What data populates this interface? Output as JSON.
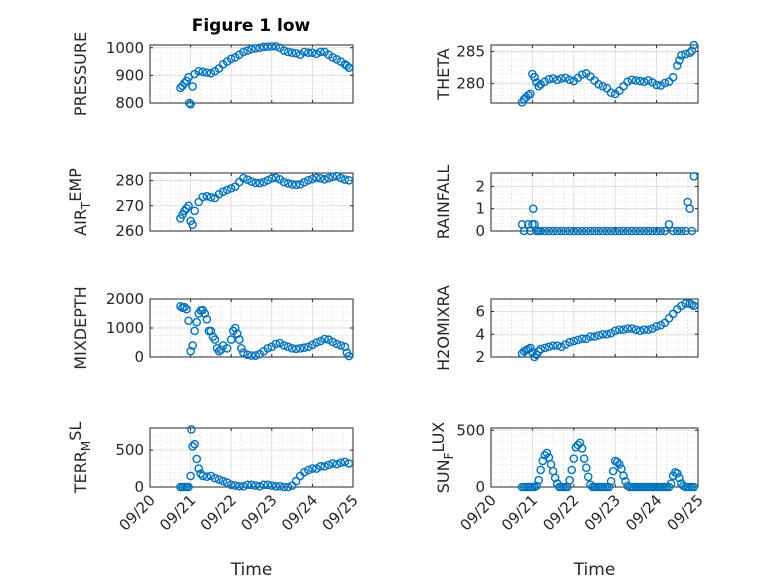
{
  "figure_title": "Figure 1 low",
  "colors": {
    "series": "#0072BD",
    "axes": "#262626",
    "grid": "#d9d9d9"
  },
  "chart_data": [
    {
      "type": "scatter",
      "ylabel_main": "PRESSURE",
      "ylabel_sub": "",
      "ylim": [
        800,
        1010
      ],
      "yticks": [
        800,
        900,
        1000
      ],
      "xlim": [
        "09/20",
        "09/25"
      ],
      "xticks": [],
      "xlabel": "",
      "grid": true,
      "x": [
        20.75,
        20.8,
        20.85,
        20.9,
        20.95,
        20.97,
        21.0,
        21.05,
        21.1,
        21.2,
        21.3,
        21.4,
        21.5,
        21.6,
        21.7,
        21.8,
        21.9,
        22.0,
        22.1,
        22.2,
        22.3,
        22.4,
        22.5,
        22.6,
        22.7,
        22.8,
        22.9,
        23.0,
        23.1,
        23.2,
        23.3,
        23.4,
        23.5,
        23.6,
        23.7,
        23.8,
        23.9,
        24.0,
        24.1,
        24.2,
        24.3,
        24.4,
        24.5,
        24.6,
        24.7,
        24.8,
        24.85,
        24.9
      ],
      "y": [
        855,
        862,
        872,
        880,
        893,
        800,
        795,
        860,
        905,
        915,
        913,
        910,
        908,
        915,
        925,
        940,
        950,
        960,
        965,
        975,
        985,
        990,
        995,
        998,
        1000,
        1003,
        1004,
        1005,
        1005,
        1000,
        990,
        985,
        982,
        980,
        975,
        985,
        982,
        982,
        978,
        985,
        985,
        975,
        965,
        958,
        950,
        940,
        935,
        928
      ]
    },
    {
      "type": "scatter",
      "ylabel_main": "THETA",
      "ylabel_sub": "",
      "ylim": [
        277,
        286
      ],
      "yticks": [
        280,
        285
      ],
      "xlim": [
        "09/20",
        "09/25"
      ],
      "xticks": [],
      "xlabel": "",
      "grid": true,
      "x": [
        20.75,
        20.8,
        20.85,
        20.9,
        20.95,
        21.0,
        21.05,
        21.1,
        21.15,
        21.2,
        21.3,
        21.4,
        21.5,
        21.6,
        21.7,
        21.8,
        21.9,
        22.0,
        22.1,
        22.2,
        22.3,
        22.4,
        22.5,
        22.6,
        22.7,
        22.8,
        22.9,
        23.0,
        23.1,
        23.2,
        23.3,
        23.4,
        23.5,
        23.6,
        23.7,
        23.8,
        23.9,
        24.0,
        24.1,
        24.2,
        24.3,
        24.4,
        24.5,
        24.55,
        24.6,
        24.7,
        24.8,
        24.85,
        24.9
      ],
      "y": [
        277.1,
        277.6,
        277.9,
        278.2,
        278.4,
        281.5,
        281.0,
        280.2,
        279.6,
        279.9,
        280.3,
        280.7,
        280.8,
        280.6,
        280.8,
        280.9,
        280.6,
        280.4,
        280.9,
        281.4,
        281.6,
        281.1,
        280.5,
        279.9,
        279.6,
        279.3,
        278.6,
        278.4,
        278.9,
        279.6,
        280.3,
        280.6,
        280.5,
        280.4,
        280.3,
        280.5,
        280.2,
        279.8,
        279.7,
        280.1,
        280.3,
        281.0,
        282.8,
        283.6,
        284.4,
        284.6,
        284.8,
        285.1,
        286.0
      ]
    },
    {
      "type": "scatter",
      "ylabel_main": "AIR",
      "ylabel_sub": "T",
      "ylabel_tail": "EMP",
      "ylim": [
        260,
        283
      ],
      "yticks": [
        260,
        270,
        280
      ],
      "xlim": [
        "09/20",
        "09/25"
      ],
      "xticks": [],
      "xlabel": "",
      "grid": true,
      "x": [
        20.75,
        20.8,
        20.85,
        20.9,
        20.95,
        21.0,
        21.05,
        21.1,
        21.2,
        21.3,
        21.4,
        21.5,
        21.6,
        21.7,
        21.8,
        21.9,
        22.0,
        22.1,
        22.2,
        22.3,
        22.4,
        22.5,
        22.6,
        22.7,
        22.8,
        22.9,
        23.0,
        23.1,
        23.2,
        23.3,
        23.4,
        23.5,
        23.6,
        23.7,
        23.8,
        23.9,
        24.0,
        24.1,
        24.2,
        24.3,
        24.4,
        24.5,
        24.6,
        24.7,
        24.8,
        24.9
      ],
      "y": [
        265,
        266.5,
        268,
        269,
        270,
        264,
        262.5,
        268,
        271.5,
        273.5,
        273.8,
        273.4,
        273.1,
        274.6,
        275.6,
        276.3,
        276.9,
        277.6,
        279.4,
        281.0,
        280.4,
        279.6,
        279.1,
        279.0,
        279.4,
        280.1,
        280.9,
        281.1,
        280.5,
        279.4,
        278.9,
        278.5,
        278.3,
        278.5,
        279.3,
        280.1,
        280.6,
        281.1,
        280.9,
        280.5,
        281.0,
        281.5,
        281.8,
        281.0,
        280.4,
        280.1
      ]
    },
    {
      "type": "scatter",
      "ylabel_main": "RAINFALL",
      "ylabel_sub": "",
      "ylim": [
        0,
        2.6
      ],
      "yticks": [
        0,
        1,
        2
      ],
      "xlim": [
        "09/20",
        "09/25"
      ],
      "xticks": [],
      "xlabel": "",
      "grid": true,
      "x": [
        20.75,
        20.8,
        20.9,
        20.95,
        21.0,
        21.02,
        21.05,
        21.1,
        21.15,
        21.2,
        21.3,
        21.4,
        21.5,
        21.6,
        21.7,
        21.8,
        21.9,
        22.0,
        22.1,
        22.2,
        22.3,
        22.4,
        22.5,
        22.6,
        22.7,
        22.8,
        22.9,
        23.0,
        23.1,
        23.2,
        23.3,
        23.4,
        23.5,
        23.6,
        23.7,
        23.8,
        23.9,
        24.0,
        24.1,
        24.2,
        24.3,
        24.4,
        24.5,
        24.6,
        24.7,
        24.75,
        24.8,
        24.85,
        24.9
      ],
      "y": [
        0.3,
        0,
        0.3,
        0,
        0.3,
        1.0,
        0.3,
        0,
        0,
        0,
        0,
        0,
        0,
        0,
        0,
        0,
        0,
        0,
        0,
        0,
        0,
        0,
        0,
        0,
        0,
        0,
        0,
        0,
        0,
        0,
        0,
        0,
        0,
        0,
        0,
        0,
        0,
        0,
        0,
        0,
        0.3,
        0,
        0,
        0,
        0,
        1.3,
        1.0,
        0,
        2.45
      ]
    },
    {
      "type": "scatter",
      "ylabel_main": "MIXDEPTH",
      "ylabel_sub": "",
      "ylim": [
        0,
        2000
      ],
      "yticks": [
        0,
        1000,
        2000
      ],
      "xlim": [
        "09/20",
        "09/25"
      ],
      "xticks": [],
      "xlabel": "",
      "grid": true,
      "x": [
        20.75,
        20.8,
        20.85,
        20.9,
        20.95,
        21.0,
        21.05,
        21.1,
        21.15,
        21.2,
        21.25,
        21.3,
        21.35,
        21.4,
        21.45,
        21.5,
        21.55,
        21.6,
        21.65,
        21.7,
        21.75,
        21.8,
        21.9,
        22.0,
        22.05,
        22.1,
        22.15,
        22.2,
        22.25,
        22.3,
        22.4,
        22.5,
        22.6,
        22.7,
        22.8,
        22.9,
        23.0,
        23.1,
        23.2,
        23.3,
        23.4,
        23.5,
        23.6,
        23.7,
        23.8,
        23.9,
        24.0,
        24.1,
        24.2,
        24.3,
        24.4,
        24.5,
        24.6,
        24.7,
        24.8,
        24.85,
        24.9
      ],
      "y": [
        1750,
        1700,
        1720,
        1650,
        1250,
        200,
        400,
        900,
        1200,
        1500,
        1600,
        1620,
        1500,
        1300,
        900,
        900,
        700,
        600,
        300,
        200,
        250,
        400,
        300,
        600,
        900,
        1000,
        800,
        600,
        300,
        150,
        80,
        50,
        50,
        100,
        200,
        300,
        350,
        450,
        480,
        400,
        350,
        300,
        280,
        300,
        320,
        350,
        420,
        500,
        550,
        620,
        600,
        520,
        450,
        400,
        350,
        150,
        30
      ]
    },
    {
      "type": "scatter",
      "ylabel_main": "H2OMIXRA",
      "ylabel_sub": "",
      "ylim": [
        2,
        7.1
      ],
      "yticks": [
        2,
        4,
        6
      ],
      "xlim": [
        "09/20",
        "09/25"
      ],
      "xticks": [],
      "xlabel": "",
      "grid": true,
      "x": [
        20.75,
        20.8,
        20.85,
        20.9,
        20.95,
        21.0,
        21.05,
        21.1,
        21.15,
        21.2,
        21.3,
        21.4,
        21.5,
        21.6,
        21.7,
        21.8,
        21.9,
        22.0,
        22.1,
        22.2,
        22.3,
        22.4,
        22.5,
        22.6,
        22.7,
        22.8,
        22.9,
        23.0,
        23.1,
        23.2,
        23.3,
        23.4,
        23.5,
        23.6,
        23.7,
        23.8,
        23.9,
        24.0,
        24.1,
        24.2,
        24.3,
        24.4,
        24.5,
        24.6,
        24.7,
        24.8,
        24.85,
        24.9
      ],
      "y": [
        2.3,
        2.5,
        2.6,
        2.7,
        2.8,
        2.4,
        2.0,
        2.2,
        2.5,
        2.7,
        2.8,
        2.9,
        3.0,
        3.0,
        2.9,
        3.1,
        3.3,
        3.4,
        3.5,
        3.6,
        3.6,
        3.8,
        3.8,
        3.9,
        4.0,
        4.0,
        4.1,
        4.3,
        4.4,
        4.4,
        4.5,
        4.5,
        4.4,
        4.3,
        4.4,
        4.4,
        4.5,
        4.7,
        4.8,
        5.0,
        5.4,
        5.8,
        6.2,
        6.5,
        6.7,
        6.7,
        6.6,
        6.5
      ]
    },
    {
      "type": "scatter",
      "ylabel_main": "TERR",
      "ylabel_sub": "M",
      "ylabel_tail": "SL",
      "ylim": [
        0,
        800
      ],
      "yticks": [
        0,
        500
      ],
      "xlim": [
        "09/20",
        "09/25"
      ],
      "xticks": [
        "09/20",
        "09/21",
        "09/22",
        "09/23",
        "09/24",
        "09/25"
      ],
      "xlabel": "Time",
      "grid": true,
      "x": [
        20.75,
        20.8,
        20.85,
        20.9,
        20.95,
        21.0,
        21.02,
        21.05,
        21.1,
        21.15,
        21.2,
        21.25,
        21.3,
        21.4,
        21.5,
        21.6,
        21.7,
        21.8,
        21.9,
        22.0,
        22.1,
        22.2,
        22.3,
        22.4,
        22.5,
        22.6,
        22.7,
        22.8,
        22.9,
        23.0,
        23.1,
        23.2,
        23.3,
        23.4,
        23.5,
        23.6,
        23.7,
        23.8,
        23.9,
        24.0,
        24.1,
        24.2,
        24.3,
        24.4,
        24.5,
        24.6,
        24.7,
        24.8,
        24.9
      ],
      "y": [
        0,
        0,
        0,
        0,
        0,
        150,
        780,
        550,
        580,
        380,
        250,
        180,
        150,
        140,
        150,
        120,
        100,
        80,
        60,
        30,
        20,
        10,
        10,
        30,
        30,
        20,
        10,
        30,
        30,
        20,
        10,
        10,
        0,
        0,
        20,
        80,
        150,
        200,
        230,
        250,
        250,
        280,
        280,
        300,
        320,
        310,
        330,
        340,
        320
      ]
    },
    {
      "type": "scatter",
      "ylabel_main": "SUN",
      "ylabel_sub": "F",
      "ylabel_tail": "LUX",
      "ylim": [
        0,
        520
      ],
      "yticks": [
        0,
        500
      ],
      "xlim": [
        "09/20",
        "09/25"
      ],
      "xticks": [
        "09/20",
        "09/21",
        "09/22",
        "09/23",
        "09/24",
        "09/25"
      ],
      "xlabel": "Time",
      "grid": true,
      "x": [
        20.75,
        20.8,
        20.85,
        20.9,
        20.95,
        21.0,
        21.05,
        21.1,
        21.15,
        21.2,
        21.25,
        21.3,
        21.35,
        21.4,
        21.45,
        21.5,
        21.55,
        21.6,
        21.65,
        21.7,
        21.75,
        21.8,
        21.85,
        21.9,
        21.95,
        22.0,
        22.05,
        22.1,
        22.15,
        22.2,
        22.25,
        22.3,
        22.35,
        22.4,
        22.45,
        22.5,
        22.55,
        22.6,
        22.65,
        22.7,
        22.75,
        22.8,
        22.85,
        22.9,
        22.95,
        23.0,
        23.05,
        23.1,
        23.15,
        23.2,
        23.25,
        23.3,
        23.35,
        23.4,
        23.45,
        23.5,
        23.55,
        23.6,
        23.65,
        23.7,
        23.75,
        23.8,
        23.85,
        23.9,
        23.95,
        24.0,
        24.05,
        24.1,
        24.15,
        24.2,
        24.25,
        24.3,
        24.35,
        24.4,
        24.45,
        24.5,
        24.55,
        24.6,
        24.65,
        24.7,
        24.75,
        24.8,
        24.85,
        24.9
      ],
      "y": [
        0,
        0,
        0,
        0,
        0,
        0,
        0,
        10,
        60,
        150,
        230,
        280,
        300,
        260,
        200,
        140,
        80,
        30,
        0,
        0,
        0,
        0,
        0,
        60,
        150,
        250,
        350,
        370,
        390,
        340,
        250,
        170,
        90,
        20,
        0,
        0,
        0,
        0,
        0,
        0,
        0,
        0,
        0,
        50,
        140,
        230,
        220,
        200,
        160,
        100,
        50,
        10,
        0,
        0,
        0,
        0,
        0,
        0,
        0,
        0,
        0,
        0,
        0,
        0,
        0,
        0,
        0,
        0,
        0,
        0,
        0,
        0,
        30,
        100,
        130,
        120,
        80,
        30,
        10,
        0,
        0,
        0,
        0,
        0
      ]
    }
  ]
}
